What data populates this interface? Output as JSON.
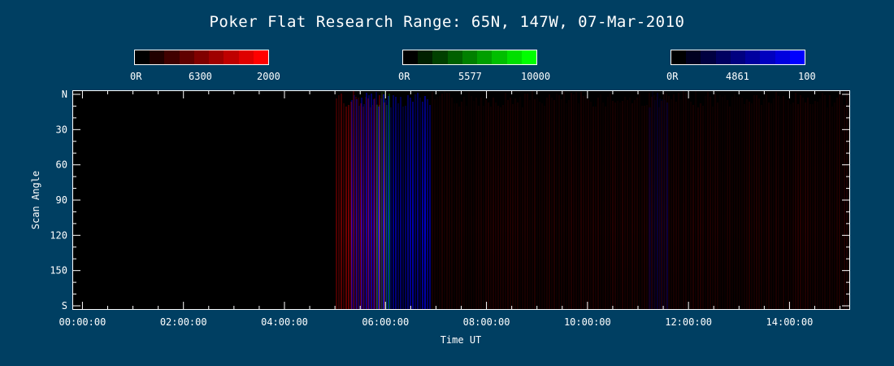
{
  "chart_data": {
    "type": "heatmap",
    "title": "Poker Flat Research Range: 65N, 147W, 07-Mar-2010",
    "xlabel": "Time UT",
    "ylabel": "Scan Angle",
    "x_ticks": [
      "00:00:00",
      "02:00:00",
      "04:00:00",
      "06:00:00",
      "08:00:00",
      "10:00:00",
      "12:00:00",
      "14:00:00"
    ],
    "x_tick_hours": [
      0,
      2,
      4,
      6,
      8,
      10,
      12,
      14
    ],
    "xlim_hours": [
      -0.2,
      15.2
    ],
    "y_ticks": [
      "N",
      "30",
      "60",
      "90",
      "120",
      "150",
      "S"
    ],
    "y_tick_values": [
      0,
      30,
      60,
      90,
      120,
      150,
      180
    ],
    "ylim": [
      0,
      180
    ],
    "colorbars": [
      {
        "name": "6300",
        "min_label": "0R",
        "max_label": "2000",
        "color": "#ff0000"
      },
      {
        "name": "5577",
        "min_label": "0R",
        "max_label": "10000",
        "color": "#00ff00"
      },
      {
        "name": "4861",
        "min_label": "0R",
        "max_label": "100",
        "color": "#0000ff"
      }
    ],
    "activity": [
      {
        "band": "4861",
        "start_hour": 5.3,
        "end_hour": 6.9,
        "level": 0.85
      },
      {
        "band": "6300",
        "start_hour": 5.0,
        "end_hour": 6.0,
        "level": 0.5
      },
      {
        "band": "5577",
        "start_hour": 5.8,
        "end_hour": 6.1,
        "level": 0.4
      },
      {
        "band": "6300",
        "start_hour": 6.9,
        "end_hour": 15.2,
        "level": 0.15
      },
      {
        "band": "4861",
        "start_hour": 11.2,
        "end_hour": 11.6,
        "level": 0.3
      }
    ]
  }
}
